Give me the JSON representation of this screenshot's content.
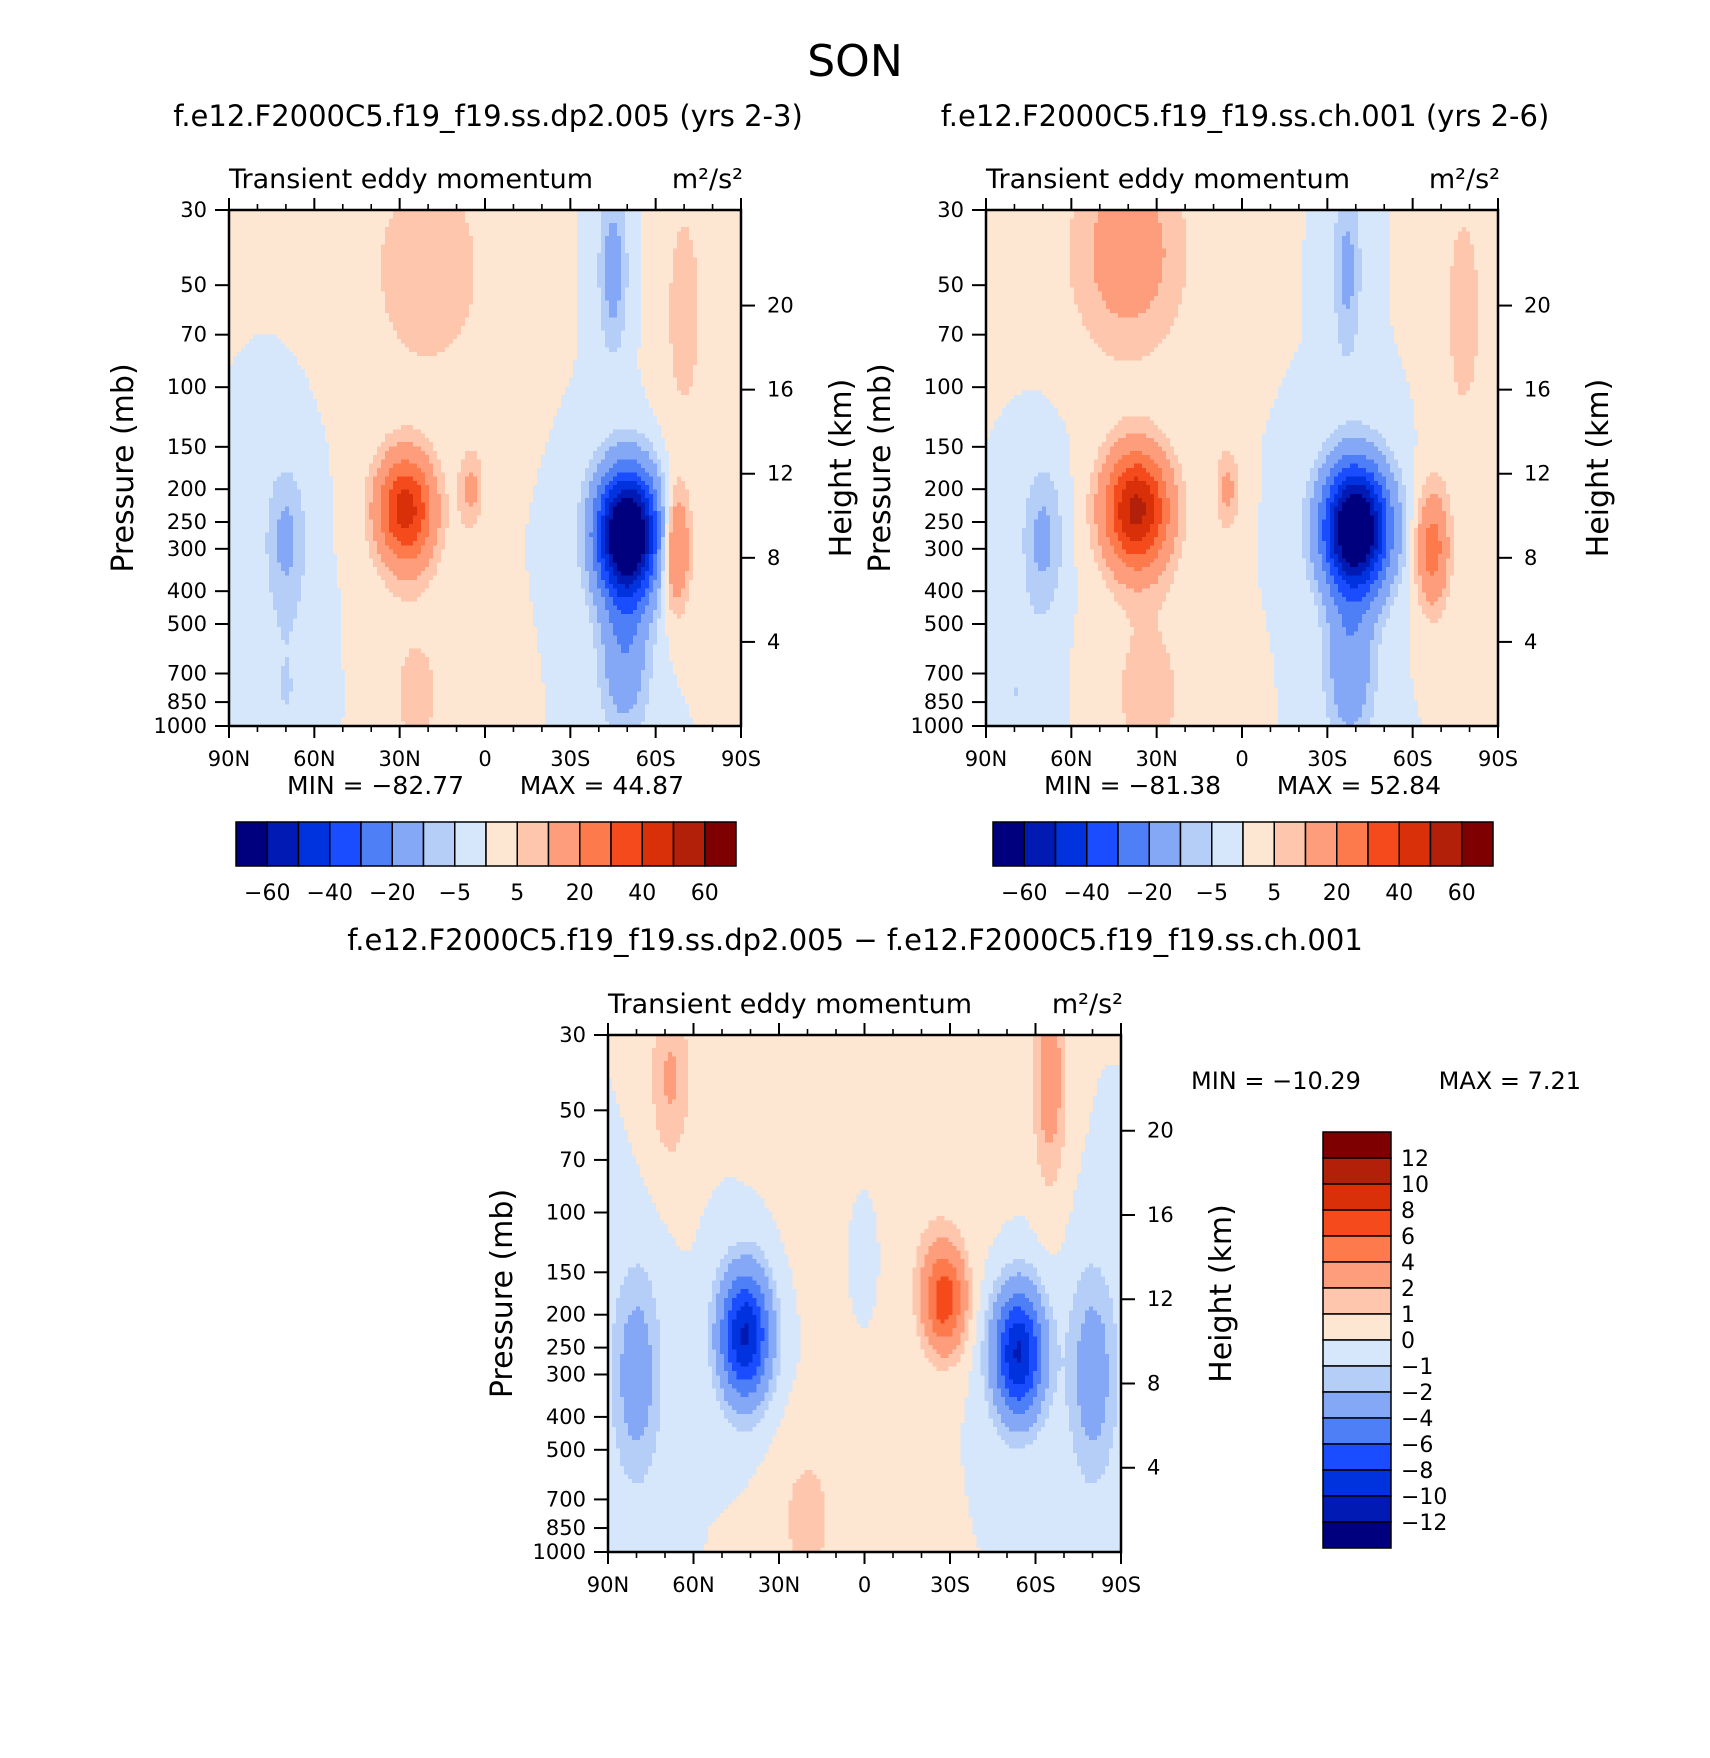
{
  "figure": {
    "title": "SON"
  },
  "chart_data": [
    {
      "id": "p1",
      "type": "heatmap",
      "case_title": "f.e12.F2000C5.f19_f19.ss.dp2.005 (yrs 2-3)",
      "subtitle_left": "Transient eddy momentum",
      "units": "m²/s²",
      "ylabel": "Pressure (mb)",
      "ylabel_right": "Height (km)",
      "x_ticks": [
        "90N",
        "60N",
        "30N",
        "0",
        "30S",
        "60S",
        "90S"
      ],
      "xlim": [
        90,
        -90
      ],
      "p_ticks": [
        "30",
        "50",
        "70",
        "100",
        "150",
        "200",
        "250",
        "300",
        "400",
        "500",
        "700",
        "850",
        "1000"
      ],
      "z_ticks": [
        "20",
        "16",
        "12",
        "8",
        "4"
      ],
      "min_text": "MIN = −82.77",
      "max_text": "MAX = 44.87",
      "min": -82.77,
      "max": 44.87,
      "features": [
        {
          "lat": -50,
          "p": 270,
          "amp": -83,
          "wlat": 7.5,
          "wlogp": 0.3
        },
        {
          "lat": -49,
          "p": 600,
          "amp": -18,
          "wlat": 6,
          "wlogp": 0.4
        },
        {
          "lat": -45,
          "p": 45,
          "amp": -14,
          "wlat": 3.5,
          "wlogp": 0.4
        },
        {
          "lat": 28,
          "p": 230,
          "amp": 45,
          "wlat": 7,
          "wlogp": 0.26
        },
        {
          "lat": 24,
          "p": 800,
          "amp": 6,
          "wlat": 10,
          "wlogp": 0.5
        },
        {
          "lat": 20,
          "p": 45,
          "amp": 10,
          "wlat": 14,
          "wlogp": 0.5
        },
        {
          "lat": 5,
          "p": 200,
          "amp": 12,
          "wlat": 3,
          "wlogp": 0.2
        },
        {
          "lat": -67,
          "p": 300,
          "amp": 24,
          "wlat": 3.5,
          "wlogp": 0.28
        },
        {
          "lat": -70,
          "p": 60,
          "amp": 7,
          "wlat": 6,
          "wlogp": 0.7
        },
        {
          "lat": 70,
          "p": 280,
          "amp": -12,
          "wlat": 5,
          "wlogp": 0.35
        },
        {
          "lat": 70,
          "p": 800,
          "amp": -5,
          "wlat": 8,
          "wlogp": 0.4
        }
      ],
      "colorbar": {
        "tick_labels": [
          "−60",
          "−40",
          "−20",
          "−5",
          "5",
          "20",
          "40",
          "60"
        ],
        "levels": [
          -60,
          -50,
          -40,
          -30,
          -20,
          -10,
          -5,
          0,
          5,
          10,
          20,
          30,
          40,
          50,
          60
        ],
        "colors": [
          "#00007f",
          "#001ab3",
          "#0033dd",
          "#1a4dff",
          "#4f7ff7",
          "#84a8f5",
          "#b5cef8",
          "#d7e7fb",
          "#fde6d2",
          "#fdc6ad",
          "#fd9d7c",
          "#fd7a4d",
          "#f54a1c",
          "#d9300a",
          "#b3200a",
          "#7f0000"
        ]
      }
    },
    {
      "id": "p2",
      "type": "heatmap",
      "case_title": "f.e12.F2000C5.f19_f19.ss.ch.001 (yrs 2-6)",
      "subtitle_left": "Transient eddy momentum",
      "units": "m²/s²",
      "ylabel": "Pressure (mb)",
      "ylabel_right": "Height (km)",
      "x_ticks": [
        "90N",
        "60N",
        "30N",
        "0",
        "30S",
        "60S",
        "90S"
      ],
      "xlim": [
        90,
        -90
      ],
      "p_ticks": [
        "30",
        "50",
        "70",
        "100",
        "150",
        "200",
        "250",
        "300",
        "400",
        "500",
        "700",
        "850",
        "1000"
      ],
      "z_ticks": [
        "20",
        "16",
        "12",
        "8",
        "4"
      ],
      "min_text": "MIN = −81.38",
      "max_text": "MAX = 52.84",
      "min": -81.38,
      "max": 52.84,
      "features": [
        {
          "lat": -40,
          "p": 260,
          "amp": -81,
          "wlat": 8,
          "wlogp": 0.3
        },
        {
          "lat": -38,
          "p": 650,
          "amp": -18,
          "wlat": 6,
          "wlogp": 0.4
        },
        {
          "lat": -37,
          "p": 45,
          "amp": -12,
          "wlat": 3.5,
          "wlogp": 0.45
        },
        {
          "lat": 37,
          "p": 230,
          "amp": 53,
          "wlat": 8,
          "wlogp": 0.28
        },
        {
          "lat": 33,
          "p": 800,
          "amp": 7,
          "wlat": 11,
          "wlogp": 0.5
        },
        {
          "lat": 40,
          "p": 40,
          "amp": 15,
          "wlat": 14,
          "wlogp": 0.5
        },
        {
          "lat": 5,
          "p": 200,
          "amp": 12,
          "wlat": 3,
          "wlogp": 0.2
        },
        {
          "lat": -67,
          "p": 300,
          "amp": 25,
          "wlat": 4,
          "wlogp": 0.28
        },
        {
          "lat": -78,
          "p": 60,
          "amp": 7,
          "wlat": 6,
          "wlogp": 0.7
        },
        {
          "lat": 70,
          "p": 280,
          "amp": -12,
          "wlat": 5,
          "wlogp": 0.35
        },
        {
          "lat": 80,
          "p": 800,
          "amp": -5,
          "wlat": 8,
          "wlogp": 0.4
        }
      ],
      "colorbar": {
        "tick_labels": [
          "−60",
          "−40",
          "−20",
          "−5",
          "5",
          "20",
          "40",
          "60"
        ],
        "levels": [
          -60,
          -50,
          -40,
          -30,
          -20,
          -10,
          -5,
          0,
          5,
          10,
          20,
          30,
          40,
          50,
          60
        ],
        "colors": [
          "#00007f",
          "#001ab3",
          "#0033dd",
          "#1a4dff",
          "#4f7ff7",
          "#84a8f5",
          "#b5cef8",
          "#d7e7fb",
          "#fde6d2",
          "#fdc6ad",
          "#fd9d7c",
          "#fd7a4d",
          "#f54a1c",
          "#d9300a",
          "#b3200a",
          "#7f0000"
        ]
      }
    },
    {
      "id": "p3",
      "type": "heatmap",
      "case_title": "f.e12.F2000C5.f19_f19.ss.dp2.005 − f.e12.F2000C5.f19_f19.ss.ch.001",
      "subtitle_left": "Transient eddy momentum",
      "units": "m²/s²",
      "ylabel": "Pressure (mb)",
      "ylabel_right": "Height (km)",
      "x_ticks": [
        "90N",
        "60N",
        "30N",
        "0",
        "30S",
        "60S",
        "90S"
      ],
      "xlim": [
        90,
        -90
      ],
      "p_ticks": [
        "30",
        "50",
        "70",
        "100",
        "150",
        "200",
        "250",
        "300",
        "400",
        "500",
        "700",
        "850",
        "1000"
      ],
      "z_ticks": [
        "20",
        "16",
        "12",
        "8",
        "4"
      ],
      "min_text": "MIN = −10.29",
      "max_text": "MAX = 7.21",
      "min": -10.29,
      "max": 7.21,
      "features": [
        {
          "lat": 42,
          "p": 230,
          "amp": -10.3,
          "wlat": 6,
          "wlogp": 0.3
        },
        {
          "lat": -54,
          "p": 260,
          "amp": -10.3,
          "wlat": 6,
          "wlogp": 0.3
        },
        {
          "lat": -28,
          "p": 180,
          "amp": 7.2,
          "wlat": 5,
          "wlogp": 0.24
        },
        {
          "lat": -65,
          "p": 40,
          "amp": 3,
          "wlat": 4,
          "wlogp": 0.5
        },
        {
          "lat": 68,
          "p": 40,
          "amp": 2.2,
          "wlat": 5,
          "wlogp": 0.4
        },
        {
          "lat": 20,
          "p": 800,
          "amp": 1.4,
          "wlat": 8,
          "wlogp": 0.4
        },
        {
          "lat": 0,
          "p": 120,
          "amp": -1.3,
          "wlat": 4,
          "wlogp": 0.3
        },
        {
          "lat": 80,
          "p": 300,
          "amp": -3,
          "wlat": 6,
          "wlogp": 0.5
        },
        {
          "lat": -80,
          "p": 300,
          "amp": -3,
          "wlat": 6,
          "wlogp": 0.5
        },
        {
          "lat": -10,
          "p": 80,
          "amp": 0.8,
          "wlat": 20,
          "wlogp": 0.6
        }
      ],
      "colorbar": {
        "tick_labels": [
          "12",
          "10",
          "8",
          "6",
          "4",
          "2",
          "1",
          "0",
          "−1",
          "−2",
          "−4",
          "−6",
          "−8",
          "−10",
          "−12"
        ],
        "levels": [
          12,
          10,
          8,
          6,
          4,
          2,
          1,
          0,
          -1,
          -2,
          -4,
          -6,
          -8,
          -10,
          -12
        ],
        "colors": [
          "#7f0000",
          "#b3200a",
          "#d9300a",
          "#f54a1c",
          "#fd7a4d",
          "#fd9d7c",
          "#fdc6ad",
          "#fde6d2",
          "#d7e7fb",
          "#b5cef8",
          "#84a8f5",
          "#4f7ff7",
          "#1a4dff",
          "#0033dd",
          "#001ab3",
          "#00007f"
        ]
      }
    }
  ]
}
